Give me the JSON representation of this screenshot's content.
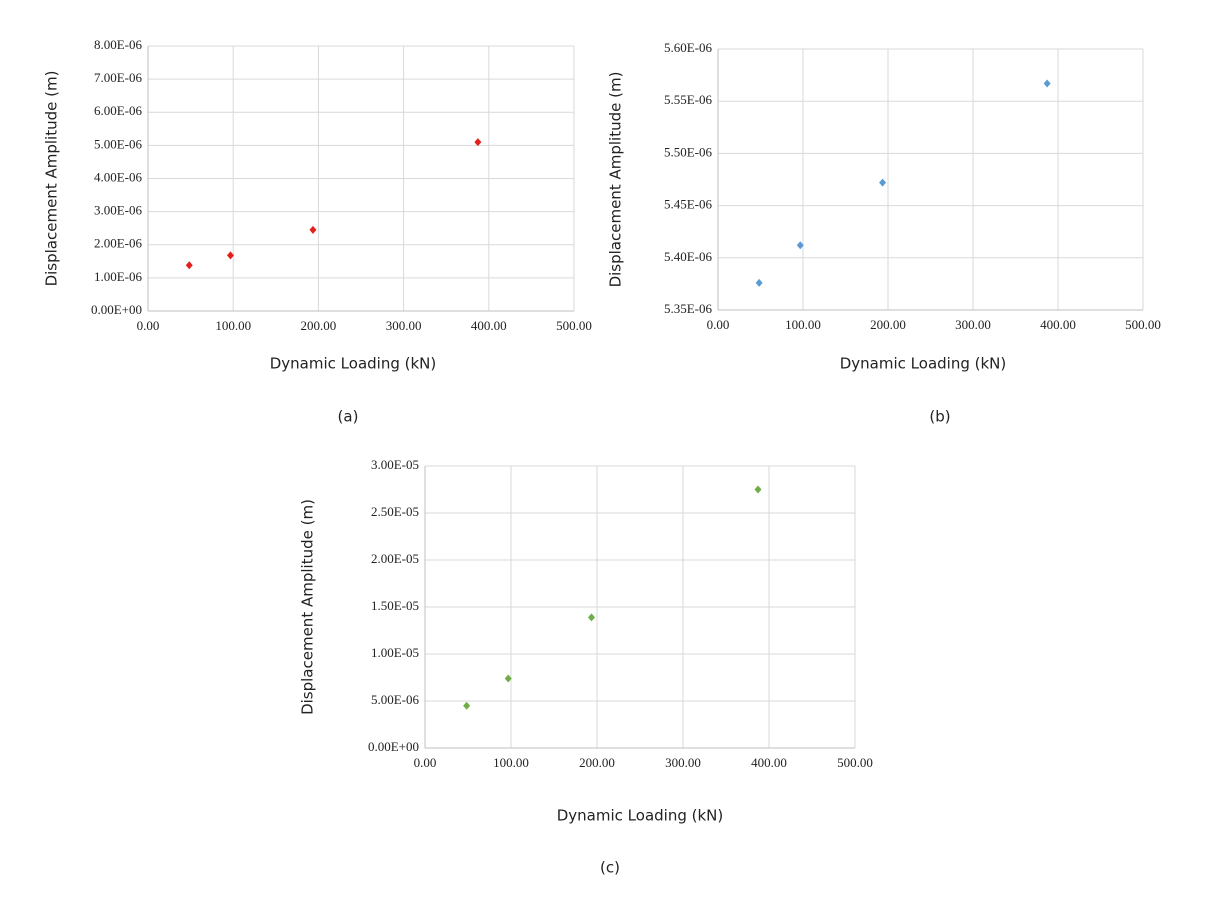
{
  "chart_data": [
    {
      "type": "line",
      "panel_label": "(a)",
      "x_label": "Dynamic Loading (kN)",
      "y_label": "Displacement Amplitude (m)",
      "x": [
        48.4,
        96.8,
        193.6,
        387.2
      ],
      "series": [
        {
          "color": "#e3201b",
          "values": [
            1.38e-06,
            1.68e-06,
            2.45e-06,
            5.1e-06
          ]
        }
      ],
      "xlim": [
        0,
        500
      ],
      "ylim": [
        0,
        8e-06
      ],
      "grid": true,
      "xticks": [
        {
          "value": 0,
          "label": "0.00"
        },
        {
          "value": 100,
          "label": "100.00"
        },
        {
          "value": 200,
          "label": "200.00"
        },
        {
          "value": 300,
          "label": "300.00"
        },
        {
          "value": 400,
          "label": "400.00"
        },
        {
          "value": 500,
          "label": "500.00"
        }
      ],
      "yticks": [
        {
          "value": 0,
          "label": "0.00E+00"
        },
        {
          "value": 1e-06,
          "label": "1.00E-06"
        },
        {
          "value": 2e-06,
          "label": "2.00E-06"
        },
        {
          "value": 3e-06,
          "label": "3.00E-06"
        },
        {
          "value": 4e-06,
          "label": "4.00E-06"
        },
        {
          "value": 5e-06,
          "label": "5.00E-06"
        },
        {
          "value": 6e-06,
          "label": "6.00E-06"
        },
        {
          "value": 7e-06,
          "label": "7.00E-06"
        },
        {
          "value": 8e-06,
          "label": "8.00E-06"
        }
      ]
    },
    {
      "type": "line",
      "panel_label": "(b)",
      "x_label": "Dynamic Loading (kN)",
      "y_label": "Displacement Amplitude (m)",
      "x": [
        48.4,
        96.8,
        193.6,
        387.2
      ],
      "series": [
        {
          "color": "#5b9bd5",
          "values": [
            5.376e-06,
            5.412e-06,
            5.472e-06,
            5.567e-06
          ]
        }
      ],
      "xlim": [
        0,
        500
      ],
      "ylim": [
        5.35e-06,
        5.6e-06
      ],
      "grid": true,
      "xticks": [
        {
          "value": 0,
          "label": "0.00"
        },
        {
          "value": 100,
          "label": "100.00"
        },
        {
          "value": 200,
          "label": "200.00"
        },
        {
          "value": 300,
          "label": "300.00"
        },
        {
          "value": 400,
          "label": "400.00"
        },
        {
          "value": 500,
          "label": "500.00"
        }
      ],
      "yticks": [
        {
          "value": 5.35e-06,
          "label": "5.35E-06"
        },
        {
          "value": 5.4e-06,
          "label": "5.40E-06"
        },
        {
          "value": 5.45e-06,
          "label": "5.45E-06"
        },
        {
          "value": 5.5e-06,
          "label": "5.50E-06"
        },
        {
          "value": 5.55e-06,
          "label": "5.55E-06"
        },
        {
          "value": 5.6e-06,
          "label": "5.60E-06"
        }
      ]
    },
    {
      "type": "line",
      "panel_label": "(c)",
      "x_label": "Dynamic Loading (kN)",
      "y_label": "Displacement Amplitude (m)",
      "x": [
        48.4,
        96.8,
        193.6,
        387.2
      ],
      "series": [
        {
          "color": "#70ad47",
          "values": [
            4.5e-06,
            7.4e-06,
            1.39e-05,
            2.75e-05
          ]
        }
      ],
      "xlim": [
        0,
        500
      ],
      "ylim": [
        0,
        3e-05
      ],
      "grid": true,
      "xticks": [
        {
          "value": 0,
          "label": "0.00"
        },
        {
          "value": 100,
          "label": "100.00"
        },
        {
          "value": 200,
          "label": "200.00"
        },
        {
          "value": 300,
          "label": "300.00"
        },
        {
          "value": 400,
          "label": "400.00"
        },
        {
          "value": 500,
          "label": "500.00"
        }
      ],
      "yticks": [
        {
          "value": 0,
          "label": "0.00E+00"
        },
        {
          "value": 5e-06,
          "label": "5.00E-06"
        },
        {
          "value": 1e-05,
          "label": "1.00E-05"
        },
        {
          "value": 1.5e-05,
          "label": "1.50E-05"
        },
        {
          "value": 2e-05,
          "label": "2.00E-05"
        },
        {
          "value": 2.5e-05,
          "label": "2.50E-05"
        },
        {
          "value": 3e-05,
          "label": "3.00E-05"
        }
      ]
    }
  ]
}
